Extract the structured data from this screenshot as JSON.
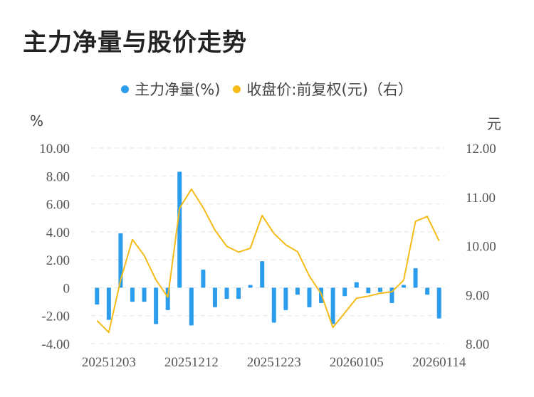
{
  "title": "主力净量与股价走势",
  "legend": [
    {
      "label": "主力净量(%)",
      "color": "#2c9ced"
    },
    {
      "label": "收盘价:前复权(元)（右）",
      "color": "#f5bb18"
    }
  ],
  "chart_data": {
    "type": "bar+line",
    "title": "主力净量与股价走势",
    "ylabel_left": "%",
    "ylabel_right": "元",
    "ylim_left": [
      -4,
      10
    ],
    "ylim_right": [
      8,
      12
    ],
    "yticks_left": [
      "10.00",
      "8.00",
      "6.00",
      "4.00",
      "2.00",
      "0",
      "-2.00",
      "-4.00"
    ],
    "yticks_right": [
      "12.00",
      "11.00",
      "10.00",
      "9.00",
      "8.00"
    ],
    "xtick_labels": [
      "20251203",
      "20251212",
      "20251223",
      "20260105",
      "20260114"
    ],
    "xtick_index": [
      1,
      8,
      15,
      22,
      29
    ],
    "grid": true,
    "legend_position": "top",
    "series": [
      {
        "name": "主力净量(%)",
        "type": "bar",
        "color": "#2c9ced",
        "values": [
          -1.2,
          -2.3,
          3.9,
          -1.0,
          -1.0,
          -2.6,
          -1.6,
          8.3,
          -2.7,
          1.3,
          -1.4,
          -0.8,
          -0.8,
          0.2,
          1.9,
          -2.5,
          -1.6,
          -0.5,
          -1.4,
          -1.1,
          -2.6,
          -0.6,
          0.4,
          -0.4,
          -0.3,
          -1.1,
          0.2,
          1.4,
          -0.5,
          -2.2
        ]
      },
      {
        "name": "收盘价:前复权(元)（右）",
        "type": "line",
        "color": "#f5bb18",
        "values": [
          8.47,
          8.23,
          9.3,
          10.13,
          9.8,
          9.3,
          8.95,
          10.77,
          11.16,
          10.78,
          10.32,
          9.99,
          9.87,
          9.95,
          10.62,
          10.25,
          10.02,
          9.88,
          9.38,
          9.02,
          8.33,
          8.63,
          8.93,
          8.97,
          9.03,
          9.06,
          9.3,
          10.5,
          10.6,
          10.1
        ]
      }
    ]
  }
}
